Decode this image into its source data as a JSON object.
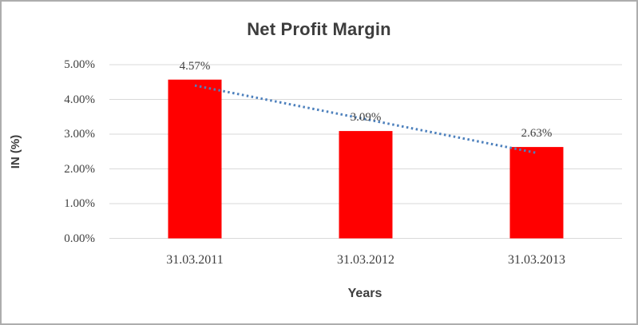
{
  "chart_data": {
    "type": "bar",
    "title": "Net Profit Margin",
    "xlabel": "Years",
    "ylabel": "IN (%)",
    "categories": [
      "31.03.2011",
      "31.03.2012",
      "31.03.2013"
    ],
    "values": [
      4.57,
      3.09,
      2.63
    ],
    "data_labels": [
      "4.57%",
      "3.09%",
      "2.63%"
    ],
    "y_ticks": [
      "0.00%",
      "1.00%",
      "2.00%",
      "3.00%",
      "4.00%",
      "5.00%"
    ],
    "ylim": [
      0,
      5
    ],
    "grid": "horizontal",
    "legend": "none",
    "trendline": {
      "type": "linear",
      "style": "dotted"
    },
    "colors": {
      "bar": "#FF0000",
      "trendline": "#4E81BD",
      "gridline": "#D9D9D9",
      "text": "#404040",
      "title_text": "#3D3D3D",
      "frame_border": "#ADADAD"
    }
  }
}
